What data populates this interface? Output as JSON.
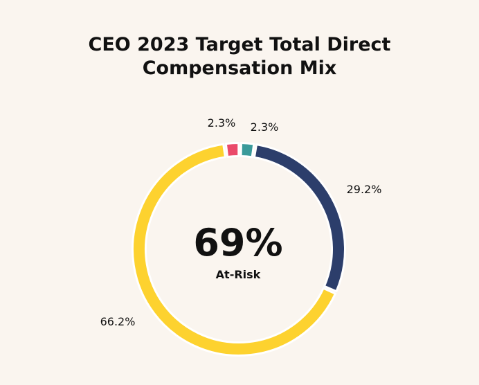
{
  "chart_data": {
    "type": "pie",
    "title_lines": [
      "CEO 2023 Target Total Direct",
      "Compensation Mix"
    ],
    "slices": [
      {
        "label": "2.3%",
        "value": 2.3,
        "color": "#3a9a9a"
      },
      {
        "label": "29.2%",
        "value": 29.2,
        "color": "#2c3e6b"
      },
      {
        "label": "66.2%",
        "value": 66.2,
        "color": "#fdd22f"
      },
      {
        "label": "2.3%",
        "value": 2.3,
        "color": "#ea4a6a"
      }
    ],
    "center": {
      "value": "69%",
      "caption": "At-Risk"
    },
    "style": "donut"
  }
}
